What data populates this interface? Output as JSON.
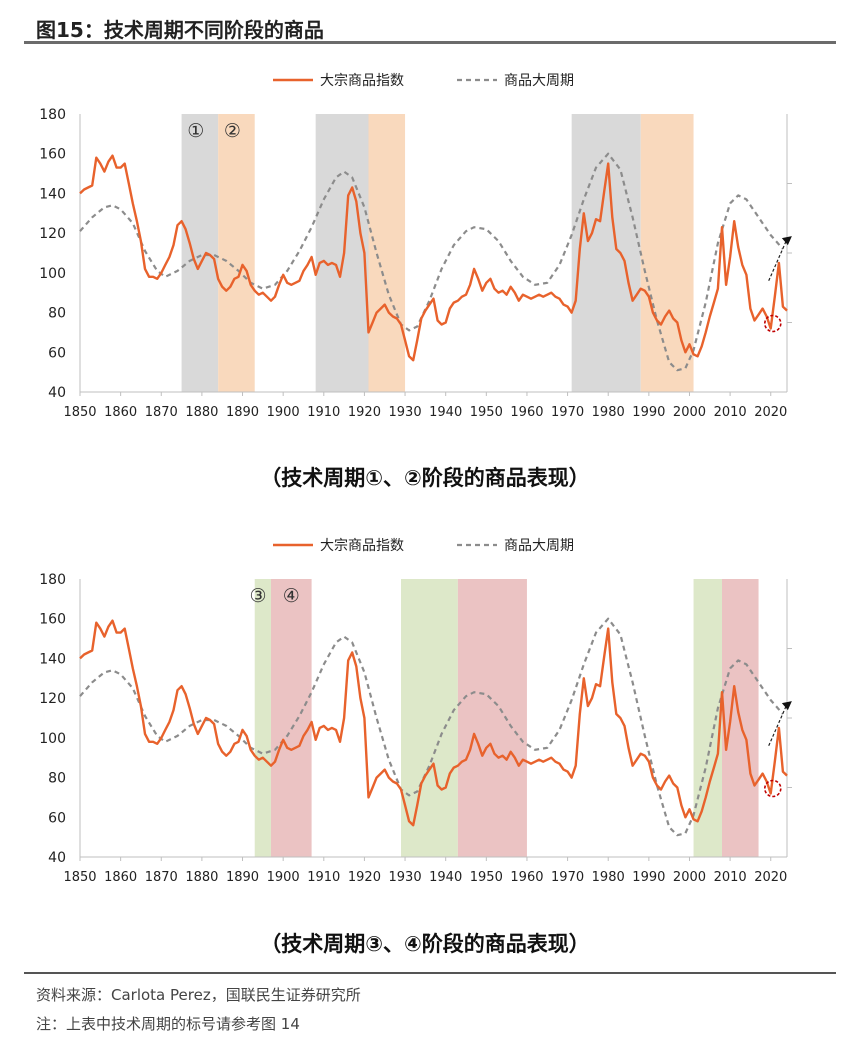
{
  "figure": {
    "title": "图15：技术周期不同阶段的商品",
    "source": "资料来源：Carlota Perez，国联民生证券研究所",
    "note": "注：上表中技术周期的标号请参考图 14"
  },
  "colors": {
    "index_line": "#e8622c",
    "cycle_line": "#8c8c8c",
    "gray_band": "#d9d9d9",
    "orange_band": "#f9d9bd",
    "green_band": "#dde8c9",
    "red_band": "#ebc3c3",
    "marker": "#c00000"
  },
  "chart_data": [
    {
      "type": "line",
      "caption": "（技术周期①、②阶段的商品表现）",
      "legend": {
        "placement": "top-center",
        "entries": [
          "大宗商品指数",
          "商品大周期"
        ]
      },
      "xlim": [
        1850,
        2024
      ],
      "ylim": [
        40,
        180
      ],
      "yticks": [
        40,
        60,
        80,
        100,
        120,
        140,
        160,
        180
      ],
      "xticks": [
        1850,
        1860,
        1870,
        1880,
        1890,
        1900,
        1910,
        1920,
        1930,
        1940,
        1950,
        1960,
        1970,
        1980,
        1990,
        2000,
        2010,
        2020
      ],
      "bands": [
        {
          "start": 1875,
          "end": 1884,
          "color": "gray"
        },
        {
          "start": 1884,
          "end": 1893,
          "color": "orange"
        },
        {
          "start": 1908,
          "end": 1921,
          "color": "gray"
        },
        {
          "start": 1921,
          "end": 1930,
          "color": "orange"
        },
        {
          "start": 1971,
          "end": 1988,
          "color": "gray"
        },
        {
          "start": 1988,
          "end": 2001,
          "color": "orange"
        }
      ],
      "labels": [
        {
          "text": "①",
          "x": 1878.5,
          "y": 172
        },
        {
          "text": "②",
          "x": 1887.5,
          "y": 172
        }
      ],
      "series": [
        {
          "name": "大宗商品指数",
          "style": "solid",
          "color": "index_line",
          "points": [
            [
              1850,
              140
            ],
            [
              1851,
              142
            ],
            [
              1852,
              143
            ],
            [
              1853,
              144
            ],
            [
              1854,
              158
            ],
            [
              1855,
              155
            ],
            [
              1856,
              151
            ],
            [
              1857,
              156
            ],
            [
              1858,
              159
            ],
            [
              1859,
              153
            ],
            [
              1860,
              153
            ],
            [
              1861,
              155
            ],
            [
              1862,
              145
            ],
            [
              1863,
              135
            ],
            [
              1864,
              126
            ],
            [
              1865,
              116
            ],
            [
              1866,
              102
            ],
            [
              1867,
              98
            ],
            [
              1868,
              98
            ],
            [
              1869,
              97
            ],
            [
              1870,
              100
            ],
            [
              1871,
              104
            ],
            [
              1872,
              108
            ],
            [
              1873,
              114
            ],
            [
              1874,
              124
            ],
            [
              1875,
              126
            ],
            [
              1876,
              122
            ],
            [
              1877,
              115
            ],
            [
              1878,
              107
            ],
            [
              1879,
              102
            ],
            [
              1880,
              106
            ],
            [
              1881,
              110
            ],
            [
              1882,
              109
            ],
            [
              1883,
              107
            ],
            [
              1884,
              97
            ],
            [
              1885,
              93
            ],
            [
              1886,
              91
            ],
            [
              1887,
              93
            ],
            [
              1888,
              97
            ],
            [
              1889,
              98
            ],
            [
              1890,
              104
            ],
            [
              1891,
              101
            ],
            [
              1892,
              94
            ],
            [
              1893,
              91
            ],
            [
              1894,
              89
            ],
            [
              1895,
              90
            ],
            [
              1896,
              88
            ],
            [
              1897,
              86
            ],
            [
              1898,
              88
            ],
            [
              1899,
              94
            ],
            [
              1900,
              99
            ],
            [
              1901,
              95
            ],
            [
              1902,
              94
            ],
            [
              1903,
              95
            ],
            [
              1904,
              96
            ],
            [
              1905,
              101
            ],
            [
              1906,
              104
            ],
            [
              1907,
              108
            ],
            [
              1908,
              99
            ],
            [
              1909,
              105
            ],
            [
              1910,
              106
            ],
            [
              1911,
              104
            ],
            [
              1912,
              105
            ],
            [
              1913,
              104
            ],
            [
              1914,
              98
            ],
            [
              1915,
              110
            ],
            [
              1916,
              139
            ],
            [
              1917,
              143
            ],
            [
              1918,
              136
            ],
            [
              1919,
              120
            ],
            [
              1920,
              110
            ],
            [
              1921,
              70
            ],
            [
              1922,
              75
            ],
            [
              1923,
              80
            ],
            [
              1924,
              82
            ],
            [
              1925,
              84
            ],
            [
              1926,
              80
            ],
            [
              1927,
              78
            ],
            [
              1928,
              77
            ],
            [
              1929,
              74
            ],
            [
              1930,
              66
            ],
            [
              1931,
              58
            ],
            [
              1932,
              56
            ],
            [
              1933,
              66
            ],
            [
              1934,
              77
            ],
            [
              1935,
              81
            ],
            [
              1936,
              84
            ],
            [
              1937,
              87
            ],
            [
              1938,
              76
            ],
            [
              1939,
              74
            ],
            [
              1940,
              75
            ],
            [
              1941,
              82
            ],
            [
              1942,
              85
            ],
            [
              1943,
              86
            ],
            [
              1944,
              88
            ],
            [
              1945,
              89
            ],
            [
              1946,
              94
            ],
            [
              1947,
              102
            ],
            [
              1948,
              97
            ],
            [
              1949,
              91
            ],
            [
              1950,
              95
            ],
            [
              1951,
              97
            ],
            [
              1952,
              92
            ],
            [
              1953,
              90
            ],
            [
              1954,
              91
            ],
            [
              1955,
              89
            ],
            [
              1956,
              93
            ],
            [
              1957,
              90
            ],
            [
              1958,
              86
            ],
            [
              1959,
              89
            ],
            [
              1960,
              88
            ],
            [
              1961,
              87
            ],
            [
              1962,
              88
            ],
            [
              1963,
              89
            ],
            [
              1964,
              88
            ],
            [
              1965,
              89
            ],
            [
              1966,
              90
            ],
            [
              1967,
              88
            ],
            [
              1968,
              87
            ],
            [
              1969,
              84
            ],
            [
              1970,
              83
            ],
            [
              1971,
              80
            ],
            [
              1972,
              86
            ],
            [
              1973,
              112
            ],
            [
              1974,
              130
            ],
            [
              1975,
              116
            ],
            [
              1976,
              120
            ],
            [
              1977,
              127
            ],
            [
              1978,
              126
            ],
            [
              1979,
              141
            ],
            [
              1980,
              155
            ],
            [
              1981,
              128
            ],
            [
              1982,
              112
            ],
            [
              1983,
              110
            ],
            [
              1984,
              106
            ],
            [
              1985,
              95
            ],
            [
              1986,
              86
            ],
            [
              1987,
              89
            ],
            [
              1988,
              92
            ],
            [
              1989,
              91
            ],
            [
              1990,
              88
            ],
            [
              1991,
              80
            ],
            [
              1992,
              76
            ],
            [
              1993,
              74
            ],
            [
              1994,
              78
            ],
            [
              1995,
              81
            ],
            [
              1996,
              77
            ],
            [
              1997,
              75
            ],
            [
              1998,
              66
            ],
            [
              1999,
              60
            ],
            [
              2000,
              64
            ],
            [
              2001,
              59
            ],
            [
              2002,
              58
            ],
            [
              2003,
              63
            ],
            [
              2004,
              70
            ],
            [
              2005,
              78
            ],
            [
              2006,
              85
            ],
            [
              2007,
              92
            ],
            [
              2008,
              123
            ],
            [
              2009,
              94
            ],
            [
              2010,
              108
            ],
            [
              2011,
              126
            ],
            [
              2012,
              113
            ],
            [
              2013,
              104
            ],
            [
              2014,
              99
            ],
            [
              2015,
              82
            ],
            [
              2016,
              76
            ],
            [
              2017,
              79
            ],
            [
              2018,
              82
            ],
            [
              2019,
              78
            ],
            [
              2020,
              72
            ],
            [
              2021,
              88
            ],
            [
              2022,
              105
            ],
            [
              2023,
              83
            ],
            [
              2024,
              81
            ]
          ]
        },
        {
          "name": "商品大周期",
          "style": "dashed",
          "color": "cycle_line",
          "points": [
            [
              1850,
              121
            ],
            [
              1853,
              128
            ],
            [
              1856,
              133
            ],
            [
              1858,
              134
            ],
            [
              1860,
              132
            ],
            [
              1863,
              125
            ],
            [
              1866,
              111
            ],
            [
              1869,
              101
            ],
            [
              1871,
              98
            ],
            [
              1874,
              101
            ],
            [
              1877,
              106
            ],
            [
              1880,
              109
            ],
            [
              1883,
              109
            ],
            [
              1886,
              106
            ],
            [
              1889,
              101
            ],
            [
              1892,
              95
            ],
            [
              1895,
              92
            ],
            [
              1898,
              94
            ],
            [
              1901,
              101
            ],
            [
              1904,
              111
            ],
            [
              1907,
              123
            ],
            [
              1910,
              137
            ],
            [
              1913,
              148
            ],
            [
              1915,
              151
            ],
            [
              1917,
              148
            ],
            [
              1920,
              133
            ],
            [
              1923,
              110
            ],
            [
              1926,
              89
            ],
            [
              1929,
              74
            ],
            [
              1931,
              71
            ],
            [
              1933,
              73
            ],
            [
              1936,
              86
            ],
            [
              1939,
              102
            ],
            [
              1942,
              114
            ],
            [
              1945,
              121
            ],
            [
              1947,
              123
            ],
            [
              1950,
              122
            ],
            [
              1953,
              116
            ],
            [
              1956,
              106
            ],
            [
              1959,
              98
            ],
            [
              1962,
              94
            ],
            [
              1965,
              95
            ],
            [
              1968,
              104
            ],
            [
              1971,
              119
            ],
            [
              1974,
              137
            ],
            [
              1977,
              153
            ],
            [
              1980,
              160
            ],
            [
              1983,
              152
            ],
            [
              1986,
              128
            ],
            [
              1989,
              101
            ],
            [
              1992,
              76
            ],
            [
              1995,
              55
            ],
            [
              1997,
              51
            ],
            [
              1999,
              52
            ],
            [
              2001,
              61
            ],
            [
              2004,
              85
            ],
            [
              2007,
              115
            ],
            [
              2010,
              135
            ],
            [
              2012,
              139
            ],
            [
              2014,
              137
            ],
            [
              2017,
              128
            ],
            [
              2020,
              119
            ],
            [
              2023,
              112
            ]
          ]
        }
      ]
    },
    {
      "type": "line",
      "caption": "（技术周期③、④阶段的商品表现）",
      "legend": {
        "placement": "top-center",
        "entries": [
          "大宗商品指数",
          "商品大周期"
        ]
      },
      "xlim": [
        1850,
        2024
      ],
      "ylim": [
        40,
        180
      ],
      "yticks": [
        40,
        60,
        80,
        100,
        120,
        140,
        160,
        180
      ],
      "xticks": [
        1850,
        1860,
        1870,
        1880,
        1890,
        1900,
        1910,
        1920,
        1930,
        1940,
        1950,
        1960,
        1970,
        1980,
        1990,
        2000,
        2010,
        2020
      ],
      "bands": [
        {
          "start": 1893,
          "end": 1897,
          "color": "green"
        },
        {
          "start": 1897,
          "end": 1907,
          "color": "red"
        },
        {
          "start": 1929,
          "end": 1943,
          "color": "green"
        },
        {
          "start": 1943,
          "end": 1960,
          "color": "red"
        },
        {
          "start": 2001,
          "end": 2008,
          "color": "green"
        },
        {
          "start": 2008,
          "end": 2017,
          "color": "red"
        }
      ],
      "labels": [
        {
          "text": "③",
          "x": 1893.8,
          "y": 172
        },
        {
          "text": "④",
          "x": 1902,
          "y": 172
        }
      ],
      "series": "same_as_first"
    }
  ]
}
